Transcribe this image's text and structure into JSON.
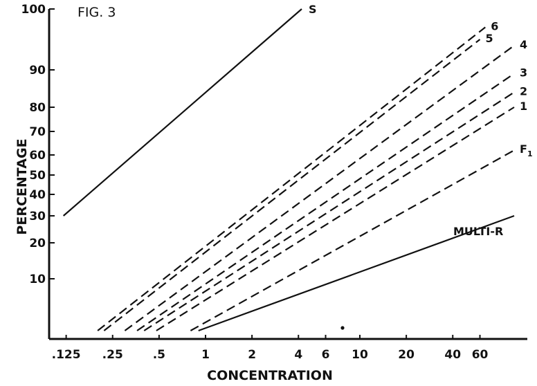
{
  "chart_data": {
    "type": "line",
    "title": "FIG. 3",
    "xlabel": "CONCENTRATION",
    "ylabel": "PERCENTAGE",
    "x_scale": "log",
    "y_scale": "probability",
    "x_ticks": [
      {
        "value": 0.125,
        "label": ".125"
      },
      {
        "value": 0.25,
        "label": ".25"
      },
      {
        "value": 0.5,
        "label": ".5"
      },
      {
        "value": 1,
        "label": "1"
      },
      {
        "value": 2,
        "label": "2"
      },
      {
        "value": 4,
        "label": "4"
      },
      {
        "value": 6,
        "label": "6"
      },
      {
        "value": 10,
        "label": "10"
      },
      {
        "value": 20,
        "label": "20"
      },
      {
        "value": 40,
        "label": "40"
      },
      {
        "value": 60,
        "label": "60"
      }
    ],
    "y_ticks": [
      {
        "value": 100,
        "label": "100"
      },
      {
        "value": 90,
        "label": "90"
      },
      {
        "value": 80,
        "label": "80"
      },
      {
        "value": 70,
        "label": "70"
      },
      {
        "value": 60,
        "label": "60"
      },
      {
        "value": 50,
        "label": "50"
      },
      {
        "value": 40,
        "label": "40"
      },
      {
        "value": 30,
        "label": "30"
      },
      {
        "value": 20,
        "label": "20"
      },
      {
        "value": 10,
        "label": "10"
      }
    ],
    "series": [
      {
        "name": "S",
        "style": "solid",
        "points": [
          [
            0.12,
            30
          ],
          [
            4.2,
            100
          ]
        ]
      },
      {
        "name": "6",
        "style": "dashed",
        "points": [
          [
            0.2,
            2.5
          ],
          [
            65,
            97
          ]
        ]
      },
      {
        "name": "5",
        "style": "dashed",
        "points": [
          [
            0.22,
            2.5
          ],
          [
            60,
            95
          ]
        ]
      },
      {
        "name": "4",
        "style": "dashed",
        "points": [
          [
            0.3,
            2.5
          ],
          [
            100,
            94
          ]
        ]
      },
      {
        "name": "3",
        "style": "dashed",
        "points": [
          [
            0.36,
            2.5
          ],
          [
            100,
            89
          ]
        ]
      },
      {
        "name": "2",
        "style": "dashed",
        "points": [
          [
            0.4,
            2.5
          ],
          [
            100,
            84
          ]
        ]
      },
      {
        "name": "1",
        "style": "dashed",
        "points": [
          [
            0.48,
            2.5
          ],
          [
            100,
            80
          ]
        ]
      },
      {
        "name": "F1",
        "style": "dashed",
        "points": [
          [
            0.8,
            2.5
          ],
          [
            100,
            62
          ]
        ]
      },
      {
        "name": "MULTI-R",
        "style": "solid",
        "points": [
          [
            0.9,
            2.5
          ],
          [
            100,
            30
          ]
        ]
      }
    ],
    "labels": [
      {
        "text": "S",
        "series": "S"
      },
      {
        "text": "6",
        "series": "6"
      },
      {
        "text": "5",
        "series": "5"
      },
      {
        "text": "4",
        "series": "4"
      },
      {
        "text": "3",
        "series": "3"
      },
      {
        "text": "2",
        "series": "2"
      },
      {
        "text": "1",
        "series": "1"
      },
      {
        "text": "F",
        "sub": "1",
        "series": "F1"
      },
      {
        "text": "MULTI-R",
        "series": "MULTI-R"
      }
    ],
    "grid": false,
    "legend": "none",
    "line_color": "#111111"
  }
}
